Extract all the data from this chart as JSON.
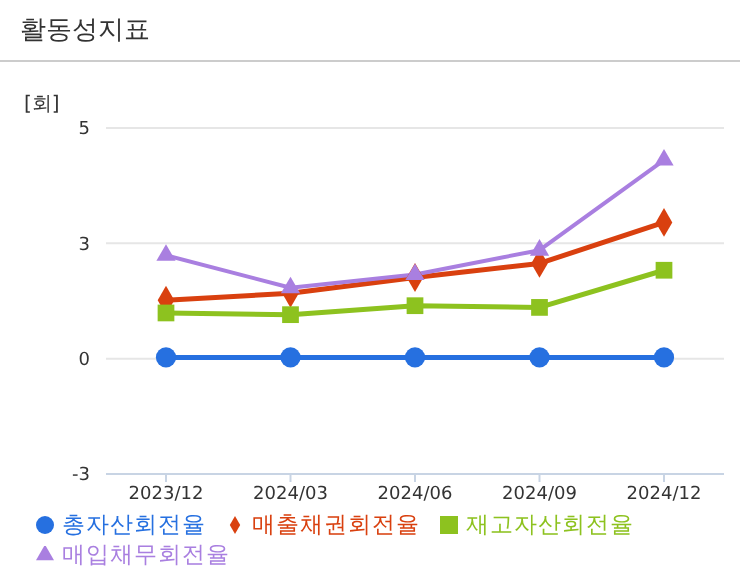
{
  "chart_data": {
    "type": "line",
    "title": "활동성지표",
    "ylabel": "[회]",
    "categories": [
      "2023/12",
      "2024/03",
      "2024/06",
      "2024/09",
      "2024/12"
    ],
    "series": [
      {
        "name": "총자산회전율",
        "color": "#2670e0",
        "marker": "circle",
        "values": [
          0.03,
          0.03,
          0.03,
          0.03,
          0.03
        ]
      },
      {
        "name": "매출채권회전율",
        "color": "#d9400f",
        "marker": "diamond",
        "values": [
          1.37,
          1.53,
          1.9,
          2.23,
          3.19
        ]
      },
      {
        "name": "재고자산회전율",
        "color": "#8dc21f",
        "marker": "square",
        "values": [
          1.07,
          1.03,
          1.24,
          1.2,
          2.07
        ]
      },
      {
        "name": "매입채무회전율",
        "color": "#a97fe0",
        "marker": "triangle",
        "values": [
          2.42,
          1.66,
          1.97,
          2.54,
          4.65
        ]
      }
    ],
    "ylim": [
      -2.7,
      5.4
    ],
    "yticks": [
      {
        "value": -2.7,
        "label": "-3"
      },
      0,
      {
        "value": 2.7,
        "label": "3"
      },
      {
        "value": 5.4,
        "label": "5"
      }
    ],
    "grid": "y",
    "legend": "bottom"
  }
}
